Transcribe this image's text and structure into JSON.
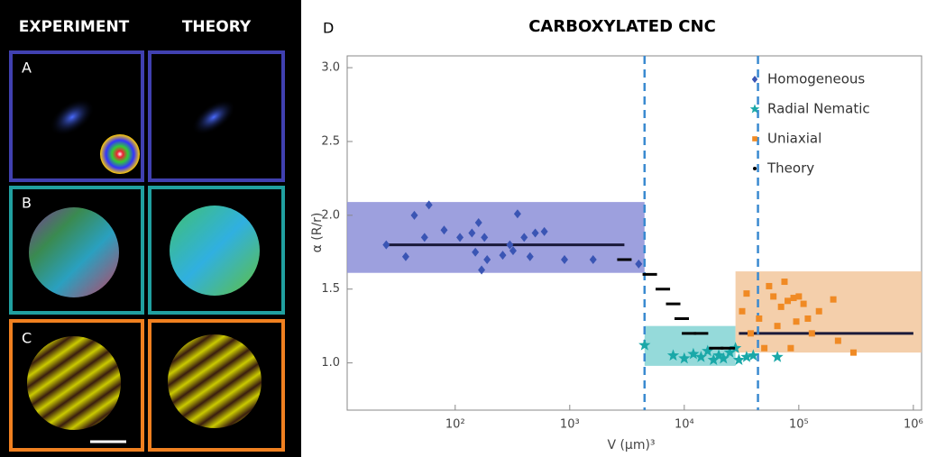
{
  "panels": {
    "headers": [
      "EXPERIMENT",
      "THEORY"
    ],
    "rows": [
      "A",
      "B",
      "C"
    ]
  },
  "chart_data": {
    "type": "scatter",
    "panel": "D",
    "title": "CARBOXYLATED CNC",
    "xlabel": "V (μm)³",
    "ylabel": "α (R/r)",
    "xscale": "log",
    "xlim": [
      11.4,
      1180000
    ],
    "ylim": [
      0.68,
      3.08
    ],
    "xticks": [
      {
        "value": 100,
        "label": "10²"
      },
      {
        "value": 1000,
        "label": "10³"
      },
      {
        "value": 10000,
        "label": "10⁴"
      },
      {
        "value": 100000,
        "label": "10⁵"
      },
      {
        "value": 1000000,
        "label": "10⁶"
      }
    ],
    "yticks": [
      {
        "value": 1,
        "label": "1.0"
      },
      1.5,
      {
        "value": 2,
        "label": "2.0"
      },
      2.5,
      {
        "value": 3,
        "label": "3.0"
      }
    ],
    "legend": "upper right",
    "vlines": [
      4500,
      44000
    ],
    "regions": [
      {
        "color": "#8c8fd8",
        "xlim": [
          11.4,
          4500
        ],
        "ylim": [
          1.61,
          2.09
        ],
        "mean": {
          "x": [
            25,
            3000
          ],
          "y": 1.8
        }
      },
      {
        "color": "#82d3d3",
        "xlim": [
          4500,
          28000
        ],
        "ylim": [
          0.98,
          1.25
        ]
      },
      {
        "color": "#f2c79c",
        "xlim": [
          28000,
          1180000
        ],
        "ylim": [
          1.07,
          1.62
        ],
        "mean": {
          "x": [
            30000,
            1000000
          ],
          "y": 1.2
        }
      }
    ],
    "series": [
      {
        "name": "Homogeneous",
        "marker": "diamond",
        "color": "#3a55b4",
        "x": [
          25,
          37,
          44,
          59,
          54,
          80,
          110,
          140,
          160,
          150,
          170,
          190,
          180,
          260,
          300,
          350,
          320,
          400,
          450,
          500,
          600,
          900,
          1600,
          4000
        ],
        "y": [
          1.8,
          1.72,
          2.0,
          2.07,
          1.85,
          1.9,
          1.85,
          1.88,
          1.95,
          1.75,
          1.63,
          1.7,
          1.85,
          1.73,
          1.8,
          2.01,
          1.76,
          1.85,
          1.72,
          1.88,
          1.89,
          1.7,
          1.7,
          1.67
        ]
      },
      {
        "name": "Radial Nematic",
        "marker": "star",
        "color": "#1aa8a8",
        "x": [
          4500,
          8000,
          10000,
          12000,
          14000,
          16000,
          18000,
          20000,
          22000,
          25000,
          28000,
          30000,
          35000,
          40000,
          65000
        ],
        "y": [
          1.12,
          1.05,
          1.03,
          1.06,
          1.04,
          1.08,
          1.02,
          1.05,
          1.03,
          1.07,
          1.1,
          1.02,
          1.04,
          1.05,
          1.04
        ]
      },
      {
        "name": "Uniaxial",
        "marker": "square",
        "color": "#f08a24",
        "x": [
          32000,
          35000,
          38000,
          45000,
          50000,
          55000,
          60000,
          65000,
          70000,
          75000,
          80000,
          90000,
          95000,
          100000,
          110000,
          120000,
          130000,
          150000,
          200000,
          220000,
          300000,
          85000
        ],
        "y": [
          1.35,
          1.47,
          1.2,
          1.3,
          1.1,
          1.52,
          1.45,
          1.25,
          1.38,
          1.55,
          1.42,
          1.44,
          1.28,
          1.45,
          1.4,
          1.3,
          1.2,
          1.35,
          1.43,
          1.15,
          1.07,
          1.1
        ]
      },
      {
        "name": "Theory",
        "marker": "dash",
        "color": "#000000",
        "x": [
          3000,
          5000,
          6500,
          8000,
          9500,
          11000,
          14000,
          19000,
          24000
        ],
        "y": [
          1.7,
          1.6,
          1.5,
          1.4,
          1.3,
          1.2,
          1.2,
          1.1,
          1.1
        ]
      }
    ]
  }
}
